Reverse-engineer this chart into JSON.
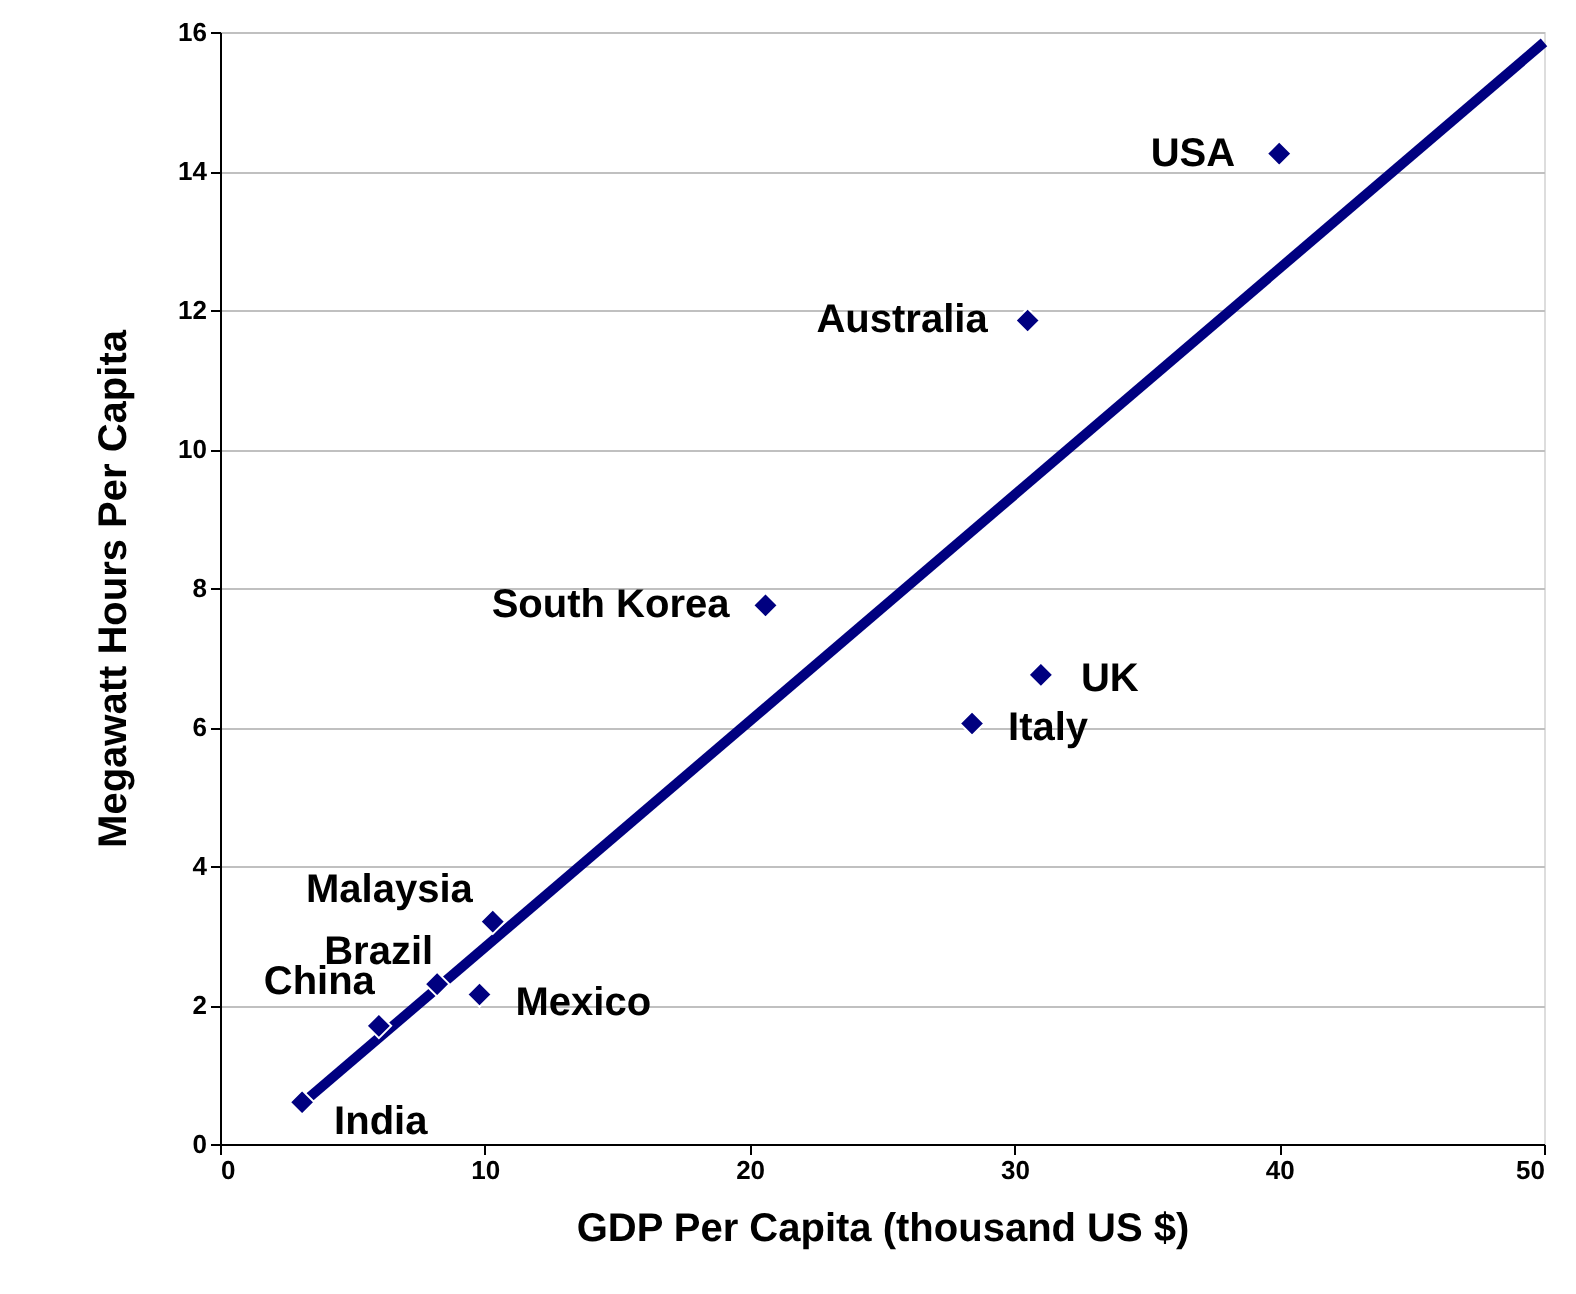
{
  "chart_data": {
    "type": "scatter",
    "xlabel": "GDP Per Capita (thousand US $)",
    "ylabel": "Megawatt Hours Per Capita",
    "xlim": [
      0,
      50
    ],
    "xticks": [
      0,
      10,
      20,
      30,
      40,
      50
    ],
    "ylim": [
      0,
      16
    ],
    "yticks": [
      0,
      2,
      4,
      6,
      8,
      10,
      12,
      14,
      16
    ],
    "grid": "y",
    "series": [
      {
        "type": "line",
        "color": "#000080",
        "x": [
          3,
          50
        ],
        "values": [
          0.55,
          15.85
        ]
      },
      {
        "marker": "diamond",
        "color": "#000080",
        "x": [
          40,
          30.5,
          20.6,
          31,
          28.4,
          10.3,
          8.2,
          9.8,
          6,
          3.1
        ],
        "values": [
          14.25,
          11.85,
          7.75,
          6.75,
          6.05,
          3.2,
          2.3,
          2.15,
          1.7,
          0.6
        ]
      }
    ],
    "annotations": [
      {
        "text": "USA",
        "x": 40,
        "y": 14.25
      },
      {
        "text": "Australia",
        "x": 30.5,
        "y": 11.85
      },
      {
        "text": "South Korea",
        "x": 20.6,
        "y": 7.75
      },
      {
        "text": "UK",
        "x": 31,
        "y": 6.75
      },
      {
        "text": "Italy",
        "x": 28.4,
        "y": 6.05
      },
      {
        "text": "Malaysia",
        "x": 10.3,
        "y": 3.2
      },
      {
        "text": "Brazil",
        "x": 8.2,
        "y": 2.3
      },
      {
        "text": "Mexico",
        "x": 9.8,
        "y": 2.15
      },
      {
        "text": "China",
        "x": 6,
        "y": 1.7
      },
      {
        "text": "India",
        "x": 3.1,
        "y": 0.6
      }
    ]
  }
}
